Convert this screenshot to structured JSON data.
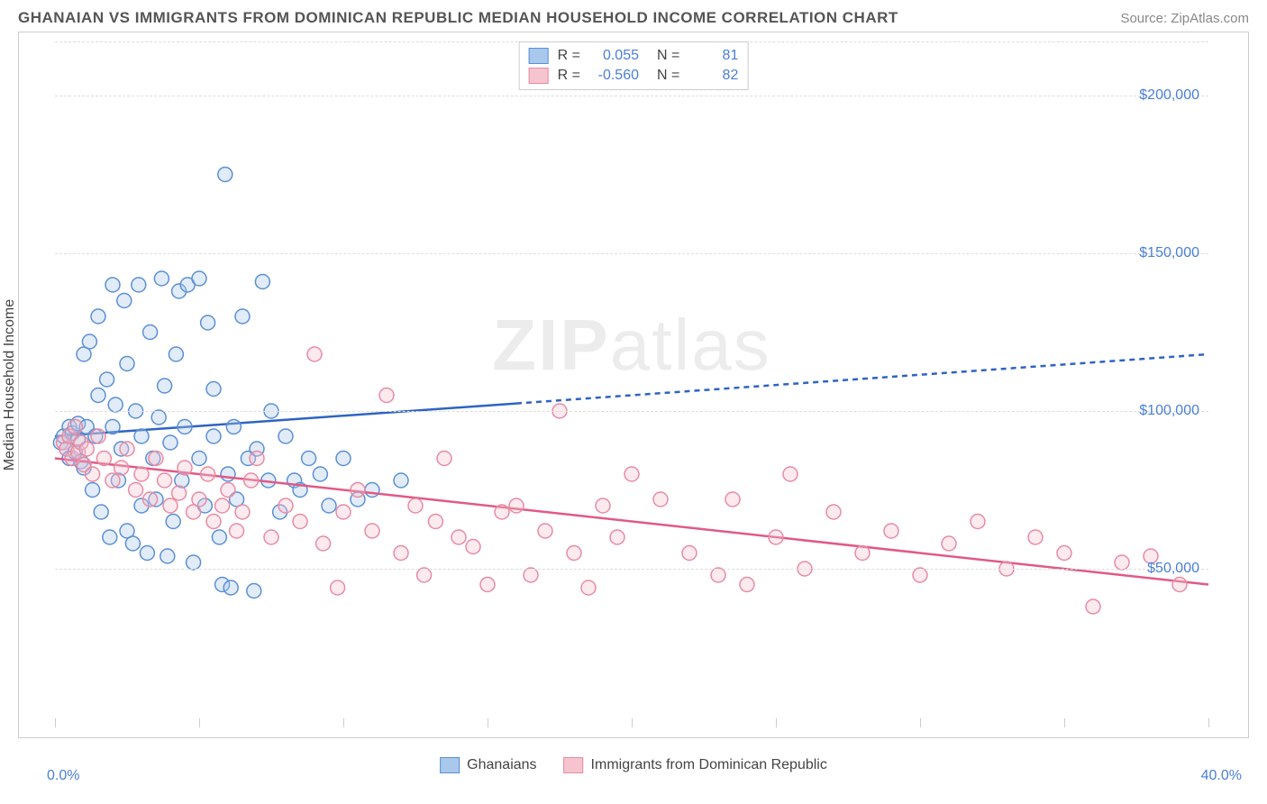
{
  "title": "GHANAIAN VS IMMIGRANTS FROM DOMINICAN REPUBLIC MEDIAN HOUSEHOLD INCOME CORRELATION CHART",
  "source": "Source: ZipAtlas.com",
  "watermark_zip": "ZIP",
  "watermark_atlas": "atlas",
  "chart": {
    "type": "scatter",
    "background_color": "#ffffff",
    "border_color": "#cccccc",
    "grid_color": "#dddddd",
    "ylabel": "Median Household Income",
    "ylabel_fontsize": 16,
    "xlim": [
      0,
      40
    ],
    "ylim": [
      0,
      220000
    ],
    "x_tick_positions": [
      0,
      5,
      10,
      15,
      20,
      25,
      30,
      35,
      40
    ],
    "y_ticks": [
      {
        "v": 50000,
        "label": "$50,000"
      },
      {
        "v": 100000,
        "label": "$100,000"
      },
      {
        "v": 150000,
        "label": "$150,000"
      },
      {
        "v": 200000,
        "label": "$200,000"
      }
    ],
    "x_axis_min_label": "0.0%",
    "x_axis_max_label": "40.0%",
    "tick_label_color": "#4a7fd8",
    "axis_label_color": "#444444",
    "marker_radius": 8,
    "marker_stroke_width": 1.5,
    "marker_fill_opacity": 0.35,
    "trend_line_width": 2.5,
    "trend_dash": "6,5",
    "series": [
      {
        "name": "Ghanaians",
        "fill": "#a8c8ec",
        "stroke": "#5b8fd6",
        "line_color": "#2e64c2",
        "R": "0.055",
        "N": "81",
        "trend_solid_end_x": 16,
        "trend": {
          "x0": 0,
          "y0": 92000,
          "x1": 40,
          "y1": 118000
        },
        "points": [
          [
            0.2,
            90000
          ],
          [
            0.3,
            92000
          ],
          [
            0.4,
            88000
          ],
          [
            0.5,
            95000
          ],
          [
            0.5,
            85000
          ],
          [
            0.6,
            93000
          ],
          [
            0.7,
            87000
          ],
          [
            0.8,
            91000
          ],
          [
            0.8,
            96000
          ],
          [
            0.9,
            84000
          ],
          [
            1.0,
            118000
          ],
          [
            1.0,
            82000
          ],
          [
            1.1,
            95000
          ],
          [
            1.2,
            122000
          ],
          [
            1.3,
            75000
          ],
          [
            1.4,
            92000
          ],
          [
            1.5,
            130000
          ],
          [
            1.5,
            105000
          ],
          [
            1.6,
            68000
          ],
          [
            1.8,
            110000
          ],
          [
            1.9,
            60000
          ],
          [
            2.0,
            140000
          ],
          [
            2.0,
            95000
          ],
          [
            2.1,
            102000
          ],
          [
            2.2,
            78000
          ],
          [
            2.3,
            88000
          ],
          [
            2.4,
            135000
          ],
          [
            2.5,
            62000
          ],
          [
            2.5,
            115000
          ],
          [
            2.7,
            58000
          ],
          [
            2.8,
            100000
          ],
          [
            2.9,
            140000
          ],
          [
            3.0,
            70000
          ],
          [
            3.0,
            92000
          ],
          [
            3.2,
            55000
          ],
          [
            3.3,
            125000
          ],
          [
            3.4,
            85000
          ],
          [
            3.5,
            72000
          ],
          [
            3.6,
            98000
          ],
          [
            3.7,
            142000
          ],
          [
            3.8,
            108000
          ],
          [
            3.9,
            54000
          ],
          [
            4.0,
            90000
          ],
          [
            4.1,
            65000
          ],
          [
            4.2,
            118000
          ],
          [
            4.3,
            138000
          ],
          [
            4.4,
            78000
          ],
          [
            4.5,
            95000
          ],
          [
            4.6,
            140000
          ],
          [
            4.8,
            52000
          ],
          [
            5.0,
            142000
          ],
          [
            5.0,
            85000
          ],
          [
            5.2,
            70000
          ],
          [
            5.3,
            128000
          ],
          [
            5.5,
            92000
          ],
          [
            5.5,
            107000
          ],
          [
            5.7,
            60000
          ],
          [
            5.8,
            45000
          ],
          [
            5.9,
            175000
          ],
          [
            6.0,
            80000
          ],
          [
            6.1,
            44000
          ],
          [
            6.2,
            95000
          ],
          [
            6.3,
            72000
          ],
          [
            6.5,
            130000
          ],
          [
            6.7,
            85000
          ],
          [
            6.9,
            43000
          ],
          [
            7.0,
            88000
          ],
          [
            7.2,
            141000
          ],
          [
            7.4,
            78000
          ],
          [
            7.5,
            100000
          ],
          [
            7.8,
            68000
          ],
          [
            8.0,
            92000
          ],
          [
            8.3,
            78000
          ],
          [
            8.5,
            75000
          ],
          [
            8.8,
            85000
          ],
          [
            9.2,
            80000
          ],
          [
            9.5,
            70000
          ],
          [
            10.0,
            85000
          ],
          [
            10.5,
            72000
          ],
          [
            11.0,
            75000
          ],
          [
            12.0,
            78000
          ]
        ]
      },
      {
        "name": "Immigrants from Dominican Republic",
        "fill": "#f5c4cf",
        "stroke": "#e88ba3",
        "line_color": "#e05a85",
        "R": "-0.560",
        "N": "82",
        "trend_solid_end_x": 40,
        "trend": {
          "x0": 0,
          "y0": 85000,
          "x1": 40,
          "y1": 45000
        },
        "points": [
          [
            0.3,
            90000
          ],
          [
            0.4,
            88000
          ],
          [
            0.5,
            92000
          ],
          [
            0.6,
            85000
          ],
          [
            0.7,
            95000
          ],
          [
            0.8,
            87000
          ],
          [
            0.9,
            90000
          ],
          [
            1.0,
            83000
          ],
          [
            1.1,
            88000
          ],
          [
            1.3,
            80000
          ],
          [
            1.5,
            92000
          ],
          [
            1.7,
            85000
          ],
          [
            2.0,
            78000
          ],
          [
            2.3,
            82000
          ],
          [
            2.5,
            88000
          ],
          [
            2.8,
            75000
          ],
          [
            3.0,
            80000
          ],
          [
            3.3,
            72000
          ],
          [
            3.5,
            85000
          ],
          [
            3.8,
            78000
          ],
          [
            4.0,
            70000
          ],
          [
            4.3,
            74000
          ],
          [
            4.5,
            82000
          ],
          [
            4.8,
            68000
          ],
          [
            5.0,
            72000
          ],
          [
            5.3,
            80000
          ],
          [
            5.5,
            65000
          ],
          [
            5.8,
            70000
          ],
          [
            6.0,
            75000
          ],
          [
            6.3,
            62000
          ],
          [
            6.5,
            68000
          ],
          [
            6.8,
            78000
          ],
          [
            7.0,
            85000
          ],
          [
            7.5,
            60000
          ],
          [
            8.0,
            70000
          ],
          [
            8.5,
            65000
          ],
          [
            9.0,
            118000
          ],
          [
            9.3,
            58000
          ],
          [
            9.8,
            44000
          ],
          [
            10.0,
            68000
          ],
          [
            10.5,
            75000
          ],
          [
            11.0,
            62000
          ],
          [
            11.5,
            105000
          ],
          [
            12.0,
            55000
          ],
          [
            12.5,
            70000
          ],
          [
            12.8,
            48000
          ],
          [
            13.2,
            65000
          ],
          [
            13.5,
            85000
          ],
          [
            14.0,
            60000
          ],
          [
            14.5,
            57000
          ],
          [
            15.0,
            45000
          ],
          [
            15.5,
            68000
          ],
          [
            16.0,
            70000
          ],
          [
            16.5,
            48000
          ],
          [
            17.0,
            62000
          ],
          [
            17.5,
            100000
          ],
          [
            18.0,
            55000
          ],
          [
            18.5,
            44000
          ],
          [
            19.0,
            70000
          ],
          [
            19.5,
            60000
          ],
          [
            20.0,
            80000
          ],
          [
            21.0,
            72000
          ],
          [
            22.0,
            55000
          ],
          [
            23.0,
            48000
          ],
          [
            23.5,
            72000
          ],
          [
            24.0,
            45000
          ],
          [
            25.0,
            60000
          ],
          [
            25.5,
            80000
          ],
          [
            26.0,
            50000
          ],
          [
            27.0,
            68000
          ],
          [
            28.0,
            55000
          ],
          [
            29.0,
            62000
          ],
          [
            30.0,
            48000
          ],
          [
            31.0,
            58000
          ],
          [
            32.0,
            65000
          ],
          [
            33.0,
            50000
          ],
          [
            34.0,
            60000
          ],
          [
            35.0,
            55000
          ],
          [
            36.0,
            38000
          ],
          [
            37.0,
            52000
          ],
          [
            38.0,
            54000
          ],
          [
            39.0,
            45000
          ]
        ]
      }
    ]
  },
  "legend_labels": {
    "R": "R =",
    "N": "N ="
  }
}
